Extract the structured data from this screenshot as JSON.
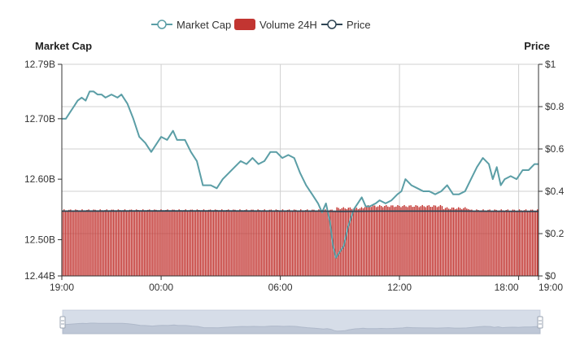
{
  "chart_data": {
    "type": "line",
    "legend": {
      "placement": "top-center",
      "items": [
        {
          "name": "Market Cap",
          "symbol": "line-circle",
          "color": "#5b9ea6"
        },
        {
          "name": "Volume 24H",
          "symbol": "rect",
          "color": "#c23531"
        },
        {
          "name": "Price",
          "symbol": "line-circle",
          "color": "#2f4554"
        }
      ]
    },
    "y_left": {
      "label": "Market Cap",
      "ticks": [
        "12.79B",
        "12.70B",
        "12.60B",
        "12.50B",
        "12.44B"
      ],
      "tick_values": [
        12.79,
        12.7,
        12.6,
        12.5,
        12.44
      ],
      "range": [
        12.44,
        12.79
      ]
    },
    "y_right": {
      "label": "Price",
      "ticks": [
        "$1",
        "$0.8",
        "$0.6",
        "$0.4",
        "$0.2",
        "$0"
      ],
      "tick_values": [
        1,
        0.8,
        0.6,
        0.4,
        0.2,
        0
      ],
      "range": [
        0,
        1
      ]
    },
    "x_axis": {
      "ticks": [
        "19:00",
        "00:00",
        "06:00",
        "12:00",
        "18:00",
        "19:00"
      ],
      "tick_hours": [
        0,
        5,
        11,
        17,
        23,
        24
      ],
      "range_hours": [
        0,
        24
      ]
    },
    "grid": true,
    "series": [
      {
        "name": "Market Cap",
        "axis": "left",
        "color": "#5b9ea6",
        "points": [
          [
            0,
            12.7
          ],
          [
            0.2,
            12.7
          ],
          [
            0.4,
            12.71
          ],
          [
            0.6,
            12.72
          ],
          [
            0.8,
            12.73
          ],
          [
            1.0,
            12.735
          ],
          [
            1.2,
            12.73
          ],
          [
            1.4,
            12.745
          ],
          [
            1.6,
            12.745
          ],
          [
            1.8,
            12.74
          ],
          [
            2.0,
            12.74
          ],
          [
            2.2,
            12.735
          ],
          [
            2.5,
            12.74
          ],
          [
            2.8,
            12.735
          ],
          [
            3.0,
            12.74
          ],
          [
            3.3,
            12.725
          ],
          [
            3.6,
            12.7
          ],
          [
            3.9,
            12.67
          ],
          [
            4.2,
            12.66
          ],
          [
            4.5,
            12.645
          ],
          [
            4.8,
            12.66
          ],
          [
            5.0,
            12.67
          ],
          [
            5.3,
            12.665
          ],
          [
            5.6,
            12.68
          ],
          [
            5.8,
            12.665
          ],
          [
            6.2,
            12.665
          ],
          [
            6.5,
            12.645
          ],
          [
            6.8,
            12.63
          ],
          [
            7.1,
            12.59
          ],
          [
            7.5,
            12.59
          ],
          [
            7.8,
            12.585
          ],
          [
            8.1,
            12.6
          ],
          [
            8.4,
            12.61
          ],
          [
            8.7,
            12.62
          ],
          [
            9.0,
            12.63
          ],
          [
            9.3,
            12.625
          ],
          [
            9.6,
            12.635
          ],
          [
            9.9,
            12.625
          ],
          [
            10.2,
            12.63
          ],
          [
            10.5,
            12.645
          ],
          [
            10.8,
            12.645
          ],
          [
            11.1,
            12.635
          ],
          [
            11.4,
            12.64
          ],
          [
            11.7,
            12.635
          ],
          [
            12.0,
            12.61
          ],
          [
            12.3,
            12.59
          ],
          [
            12.6,
            12.575
          ],
          [
            12.9,
            12.56
          ],
          [
            13.1,
            12.545
          ],
          [
            13.3,
            12.56
          ],
          [
            13.5,
            12.53
          ],
          [
            13.65,
            12.49
          ],
          [
            13.8,
            12.47
          ],
          [
            14.0,
            12.48
          ],
          [
            14.2,
            12.49
          ],
          [
            14.4,
            12.52
          ],
          [
            14.7,
            12.55
          ],
          [
            14.9,
            12.56
          ],
          [
            15.1,
            12.57
          ],
          [
            15.3,
            12.555
          ],
          [
            15.5,
            12.555
          ],
          [
            15.8,
            12.56
          ],
          [
            16.0,
            12.565
          ],
          [
            16.3,
            12.56
          ],
          [
            16.6,
            12.565
          ],
          [
            16.9,
            12.575
          ],
          [
            17.1,
            12.58
          ],
          [
            17.3,
            12.6
          ],
          [
            17.6,
            12.59
          ],
          [
            17.9,
            12.585
          ],
          [
            18.2,
            12.58
          ],
          [
            18.5,
            12.58
          ],
          [
            18.8,
            12.575
          ],
          [
            19.1,
            12.58
          ],
          [
            19.4,
            12.59
          ],
          [
            19.7,
            12.575
          ],
          [
            20.0,
            12.575
          ],
          [
            20.3,
            12.58
          ],
          [
            20.6,
            12.6
          ],
          [
            20.9,
            12.62
          ],
          [
            21.2,
            12.635
          ],
          [
            21.5,
            12.625
          ],
          [
            21.7,
            12.6
          ],
          [
            21.9,
            12.62
          ],
          [
            22.1,
            12.59
          ],
          [
            22.3,
            12.6
          ],
          [
            22.6,
            12.605
          ],
          [
            22.9,
            12.6
          ],
          [
            23.2,
            12.615
          ],
          [
            23.5,
            12.615
          ],
          [
            23.8,
            12.625
          ],
          [
            24.0,
            12.625
          ]
        ]
      },
      {
        "name": "Price",
        "axis": "right",
        "color": "#2f4554",
        "points": [
          [
            0,
            0.306
          ],
          [
            4,
            0.307
          ],
          [
            8,
            0.307
          ],
          [
            12,
            0.306
          ],
          [
            13,
            0.306
          ],
          [
            14,
            0.305
          ],
          [
            16,
            0.306
          ],
          [
            20,
            0.306
          ],
          [
            24,
            0.305
          ]
        ]
      },
      {
        "name": "Volume 24H",
        "type": "bar",
        "axis": "right",
        "color": "#c23531",
        "segments": [
          {
            "from_hour": 0,
            "to_hour": 13.8,
            "value": 0.31
          },
          {
            "from_hour": 13.8,
            "to_hour": 15.2,
            "value": 0.32
          },
          {
            "from_hour": 15.2,
            "to_hour": 17.2,
            "value": 0.33
          },
          {
            "from_hour": 17.2,
            "to_hour": 19.2,
            "value": 0.33
          },
          {
            "from_hour": 19.2,
            "to_hour": 20.5,
            "value": 0.32
          },
          {
            "from_hour": 20.5,
            "to_hour": 24,
            "value": 0.31
          }
        ]
      }
    ],
    "zoom_slider": {
      "start_percent": 0,
      "end_percent": 100
    }
  }
}
